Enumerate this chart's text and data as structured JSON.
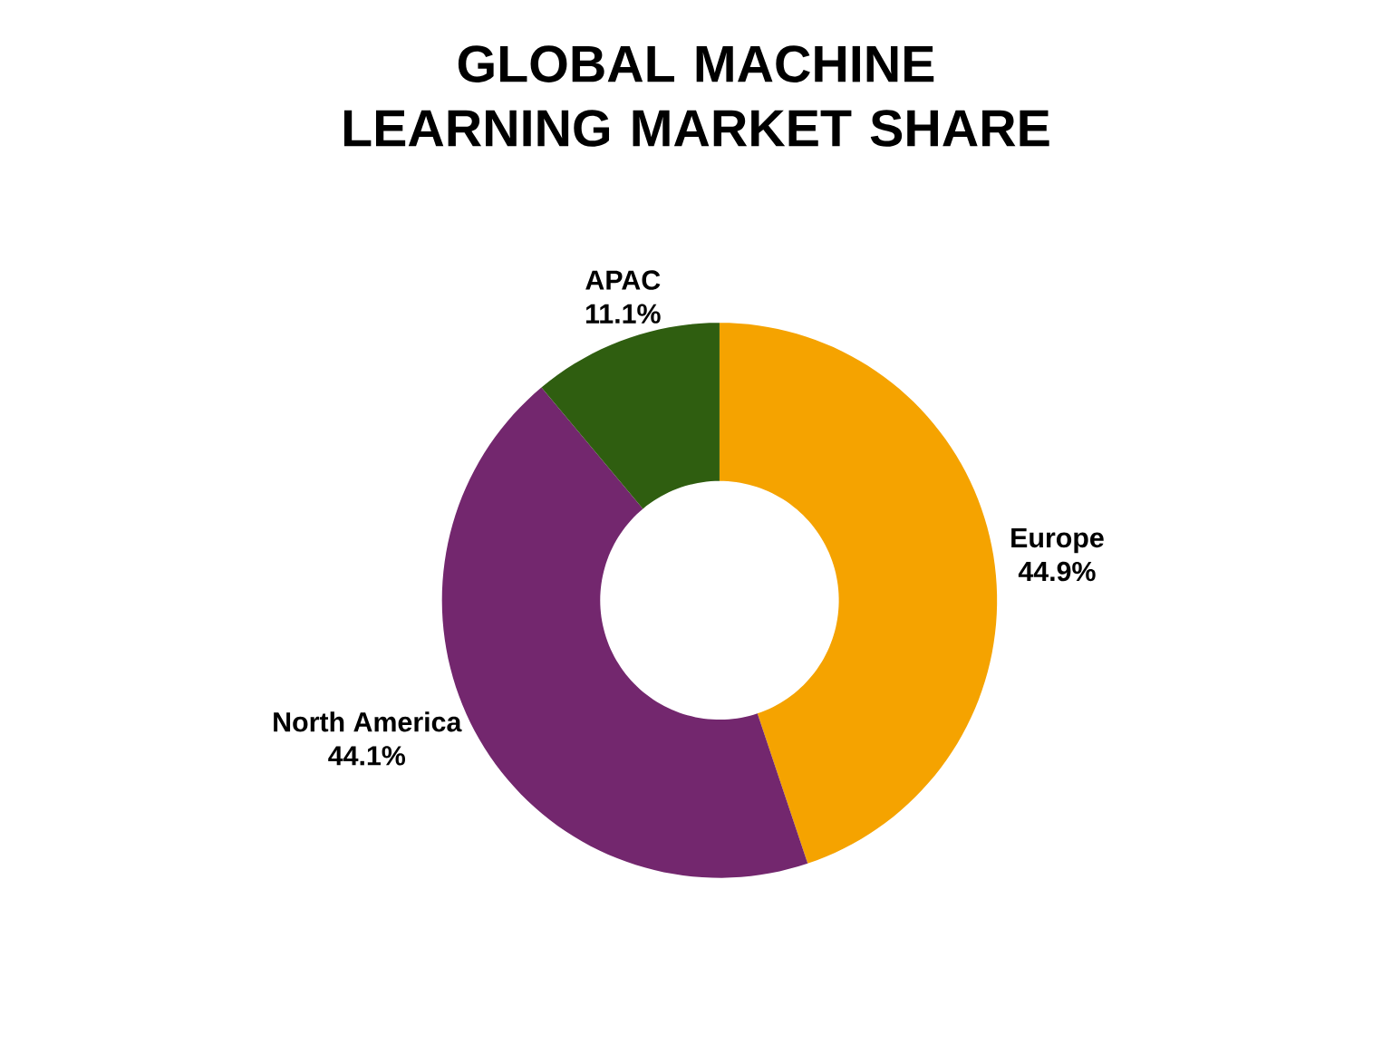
{
  "chart_data": {
    "type": "donut",
    "title": "GLOBAL MACHINE LEARNING MARKET SHARE",
    "categories": [
      "Europe",
      "North America",
      "APAC"
    ],
    "values": [
      44.9,
      44.1,
      11.1
    ],
    "value_labels": [
      "44.9%",
      "44.1%",
      "11.1%"
    ],
    "colors": [
      "#f5a300",
      "#73276e",
      "#2f5e10"
    ]
  }
}
